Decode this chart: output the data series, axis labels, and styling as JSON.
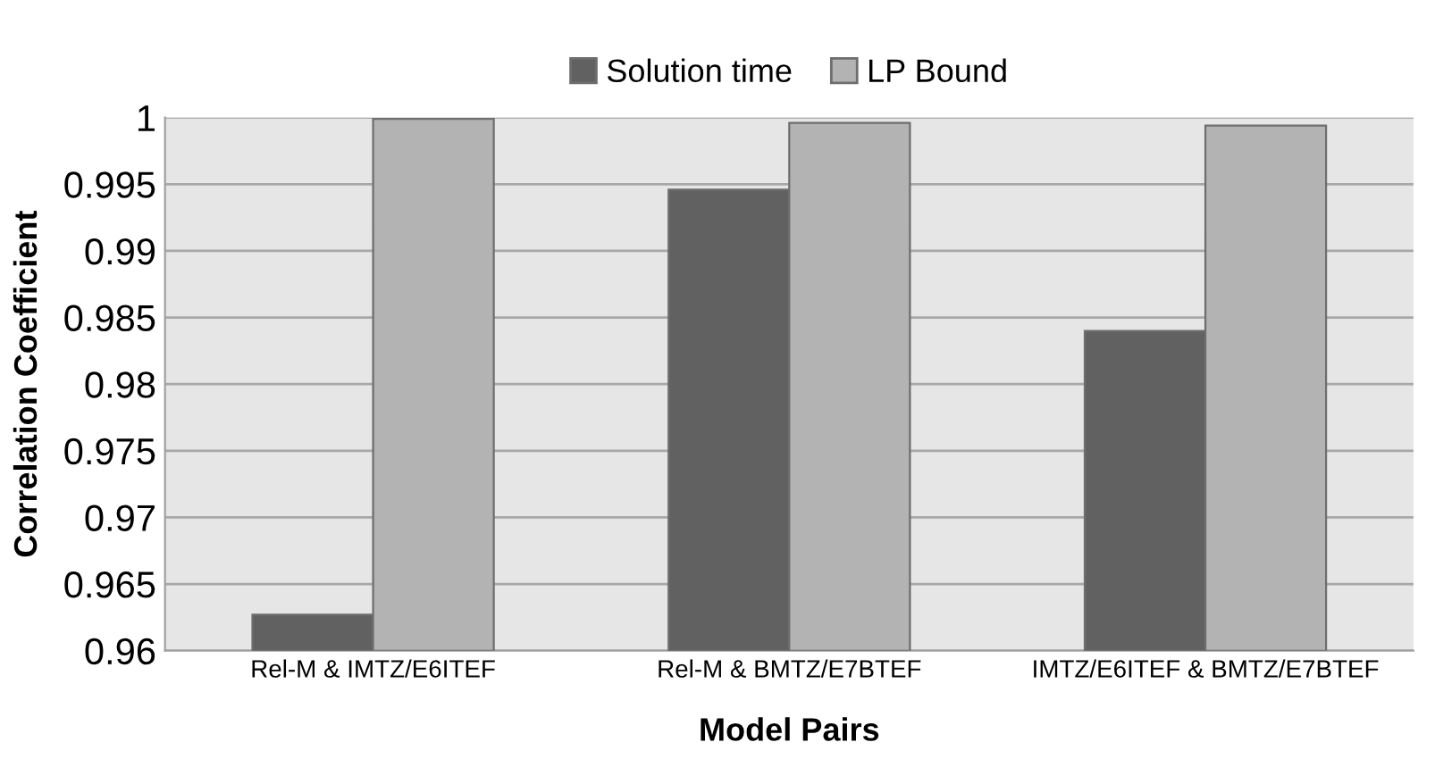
{
  "chart_data": {
    "type": "bar",
    "xlabel": "Model Pairs",
    "ylabel": "Correlation Coefficient",
    "categories": [
      "Rel-M & IMTZ/E6ITEF",
      "Rel-M & BMTZ/E7BTEF",
      "IMTZ/E6ITEF & BMTZ/E7BTEF"
    ],
    "series": [
      {
        "name": "Solution time",
        "color": "#616161",
        "values": [
          0.9627,
          0.9946,
          0.984
        ]
      },
      {
        "name": "LP Bound",
        "color": "#b3b3b3",
        "values": [
          0.9999,
          0.9996,
          0.9994
        ]
      }
    ],
    "ylim": [
      0.96,
      1
    ],
    "yticks": [
      0.96,
      0.965,
      0.97,
      0.975,
      0.98,
      0.985,
      0.99,
      0.995,
      1
    ],
    "grid": "y",
    "legend": "top"
  }
}
